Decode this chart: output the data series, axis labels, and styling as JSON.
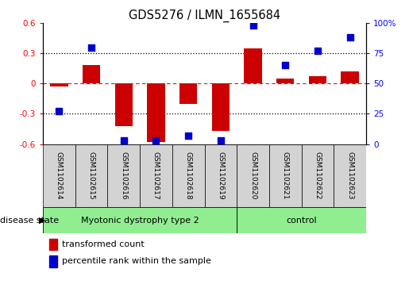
{
  "title": "GDS5276 / ILMN_1655684",
  "samples": [
    "GSM1102614",
    "GSM1102615",
    "GSM1102616",
    "GSM1102617",
    "GSM1102618",
    "GSM1102619",
    "GSM1102620",
    "GSM1102621",
    "GSM1102622",
    "GSM1102623"
  ],
  "red_values": [
    -0.03,
    0.18,
    -0.42,
    -0.58,
    -0.2,
    -0.47,
    0.35,
    0.05,
    0.07,
    0.12
  ],
  "blue_values": [
    27,
    80,
    3,
    3,
    7,
    3,
    98,
    65,
    77,
    88
  ],
  "ylim_left": [
    -0.6,
    0.6
  ],
  "ylim_right": [
    0,
    100
  ],
  "yticks_left": [
    -0.6,
    -0.3,
    0.0,
    0.3,
    0.6
  ],
  "yticks_right": [
    0,
    25,
    50,
    75,
    100
  ],
  "ytick_labels_right": [
    "0",
    "25",
    "50",
    "75",
    "100%"
  ],
  "ytick_labels_left": [
    "-0.6",
    "-0.3",
    "0",
    "0.3",
    "0.6"
  ],
  "hline_dotted_vals": [
    0.3,
    -0.3
  ],
  "hline_dashed_val": 0.0,
  "bar_color": "#CC0000",
  "dot_color": "#0000CC",
  "bar_width": 0.55,
  "dot_size": 28,
  "legend_items": [
    "transformed count",
    "percentile rank within the sample"
  ],
  "legend_colors": [
    "#CC0000",
    "#0000CC"
  ],
  "disease_label": "disease state",
  "group1_label": "Myotonic dystrophy type 2",
  "group1_count": 6,
  "group2_label": "control",
  "group2_count": 4,
  "group_color": "#90EE90",
  "sample_box_color": "#D3D3D3",
  "background_color": "#ffffff",
  "tick_label_fontsize": 7.5,
  "title_fontsize": 10.5,
  "sample_fontsize": 6.5,
  "label_fontsize": 8
}
